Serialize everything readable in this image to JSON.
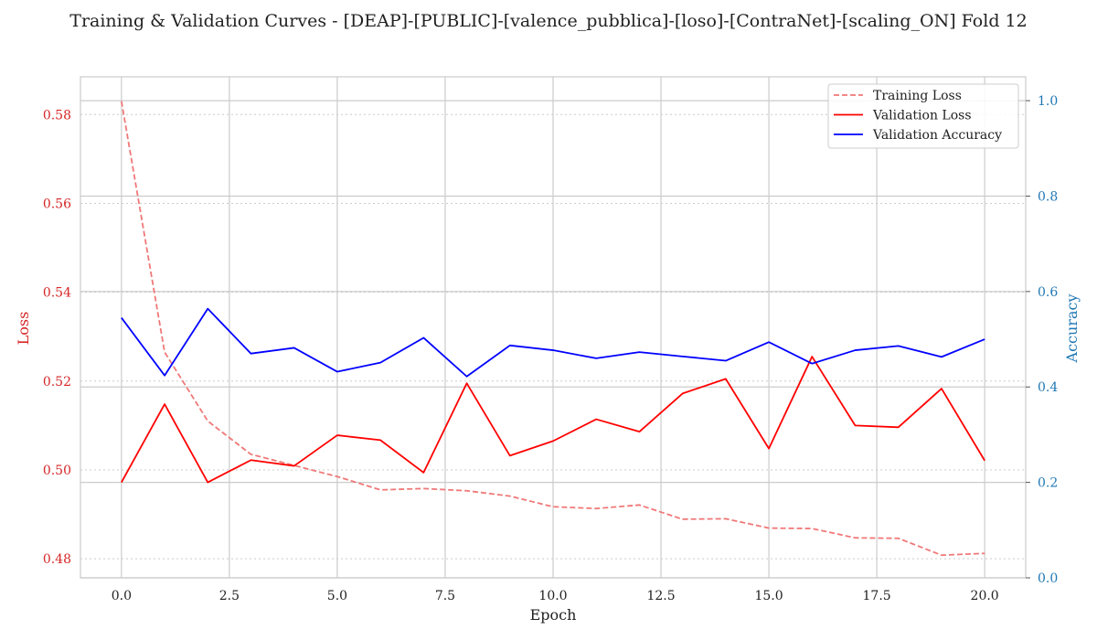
{
  "chart_data": {
    "type": "line",
    "title": "Training & Validation Curves - [DEAP]-[PUBLIC]-[valence_pubblica]-[loso]-[ContraNet]-[scaling_ON] Fold 12",
    "xlabel": "Epoch",
    "ylabel_left": "Loss",
    "ylabel_right": "Accuracy",
    "xlim": [
      -0.95,
      20.95
    ],
    "ylim_left": [
      0.4757,
      0.5885
    ],
    "ylim_right": [
      0.0,
      1.05
    ],
    "x_ticks": [
      "0.0",
      "2.5",
      "5.0",
      "7.5",
      "10.0",
      "12.5",
      "15.0",
      "17.5",
      "20.0"
    ],
    "y_ticks_left": [
      "0.48",
      "0.50",
      "0.52",
      "0.54",
      "0.56",
      "0.58"
    ],
    "y_ticks_right": [
      "0.0",
      "0.2",
      "0.4",
      "0.6",
      "0.8",
      "1.0"
    ],
    "grid": true,
    "legend_position": "top-right",
    "x": [
      0,
      1,
      2,
      3,
      4,
      5,
      6,
      7,
      8,
      9,
      10,
      11,
      12,
      13,
      14,
      15,
      16,
      17,
      18,
      19,
      20
    ],
    "series": [
      {
        "name": "Training Loss",
        "axis": "left",
        "color": "#f07878",
        "dash": true,
        "values": [
          0.583,
          0.5265,
          0.511,
          0.5035,
          0.501,
          0.4985,
          0.4955,
          0.4958,
          0.4953,
          0.4941,
          0.4917,
          0.4913,
          0.4921,
          0.4889,
          0.489,
          0.4869,
          0.4868,
          0.4847,
          0.4846,
          0.4808,
          0.4812
        ]
      },
      {
        "name": "Validation Loss",
        "axis": "left",
        "color": "#ff0000",
        "dash": false,
        "values": [
          0.4972,
          0.5148,
          0.4972,
          0.5022,
          0.5009,
          0.5078,
          0.5067,
          0.4994,
          0.5195,
          0.5032,
          0.5065,
          0.5114,
          0.5086,
          0.5172,
          0.5205,
          0.5048,
          0.5255,
          0.51,
          0.5096,
          0.5183,
          0.5021
        ]
      },
      {
        "name": "Validation Accuracy",
        "axis": "right",
        "color": "#0000ff",
        "dash": false,
        "values": [
          0.545,
          0.424,
          0.564,
          0.47,
          0.482,
          0.432,
          0.451,
          0.503,
          0.422,
          0.487,
          0.477,
          0.46,
          0.473,
          0.464,
          0.455,
          0.494,
          0.449,
          0.477,
          0.486,
          0.463,
          0.5
        ]
      }
    ]
  },
  "colors": {
    "left_axis": "#d62728",
    "right_axis": "#1f77b4",
    "grid": "#cccccc",
    "spine": "#cccccc"
  }
}
